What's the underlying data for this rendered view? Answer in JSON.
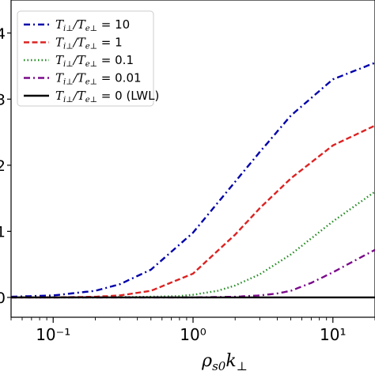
{
  "chart_data": {
    "type": "line",
    "xscale": "log",
    "xlim": [
      0.05,
      20
    ],
    "ylim": [
      -0.3,
      4.5
    ],
    "xlabel": "ρs0k⊥",
    "x_ticks": [
      {
        "value": 0.1,
        "label": "10⁻¹"
      },
      {
        "value": 1,
        "label": "10⁰"
      },
      {
        "value": 10,
        "label": "10¹"
      }
    ],
    "y_ticks": [
      {
        "value": 0,
        "label": "0"
      },
      {
        "value": 1,
        "label": "1"
      },
      {
        "value": 2,
        "label": "2"
      },
      {
        "value": 3,
        "label": "3"
      },
      {
        "value": 4,
        "label": "4"
      }
    ],
    "legend_position": "top-left",
    "grid": false,
    "series": [
      {
        "name": "Ti⊥/Te⊥ = 10",
        "color": "#0000aa",
        "style": "dashdot",
        "x": [
          0.05,
          0.1,
          0.2,
          0.3,
          0.5,
          1,
          2,
          3,
          5,
          10,
          20
        ],
        "y": [
          0.01,
          0.03,
          0.1,
          0.2,
          0.42,
          0.98,
          1.75,
          2.2,
          2.75,
          3.3,
          3.55
        ]
      },
      {
        "name": "Ti⊥/Te⊥ = 1",
        "color": "#dd2222",
        "style": "dashed",
        "x": [
          0.05,
          0.1,
          0.2,
          0.3,
          0.5,
          1,
          2,
          3,
          5,
          10,
          20
        ],
        "y": [
          0.0,
          0.0,
          0.01,
          0.03,
          0.1,
          0.36,
          0.95,
          1.35,
          1.8,
          2.3,
          2.6
        ]
      },
      {
        "name": "Ti⊥/Te⊥ = 0.1",
        "color": "#228b22",
        "style": "dotted",
        "x": [
          0.05,
          0.2,
          0.5,
          0.8,
          1,
          1.5,
          2,
          3,
          5,
          10,
          20
        ],
        "y": [
          0.0,
          0.0,
          0.01,
          0.02,
          0.04,
          0.1,
          0.18,
          0.35,
          0.65,
          1.15,
          1.6
        ]
      },
      {
        "name": "Ti⊥/Te⊥ = 0.01",
        "color": "#7a0a8a",
        "style": "dashdot",
        "x": [
          0.05,
          1,
          2,
          3,
          4,
          5,
          7,
          10,
          15,
          20
        ],
        "y": [
          0.0,
          0.0,
          0.01,
          0.03,
          0.06,
          0.1,
          0.22,
          0.38,
          0.58,
          0.72
        ]
      },
      {
        "name": "Ti⊥/Te⊥ = 0 (LWL)",
        "color": "#000000",
        "style": "solid",
        "x": [
          0.05,
          20
        ],
        "y": [
          0.0,
          0.0
        ]
      }
    ]
  },
  "legend_labels": [
    {
      "num": "T",
      "num_sub": "i⊥",
      "den": "T",
      "den_sub": "e⊥",
      "value": " = 10"
    },
    {
      "num": "T",
      "num_sub": "i⊥",
      "den": "T",
      "den_sub": "e⊥",
      "value": " = 1"
    },
    {
      "num": "T",
      "num_sub": "i⊥",
      "den": "T",
      "den_sub": "e⊥",
      "value": " = 0.1"
    },
    {
      "num": "T",
      "num_sub": "i⊥",
      "den": "T",
      "den_sub": "e⊥",
      "value": " = 0.01"
    },
    {
      "num": "T",
      "num_sub": "i⊥",
      "den": "T",
      "den_sub": "e⊥",
      "value": " = 0 (LWL)"
    }
  ],
  "xlabel_parts": {
    "rho": "ρ",
    "rho_sub": "s0",
    "k": "k",
    "k_sub": "⊥"
  }
}
